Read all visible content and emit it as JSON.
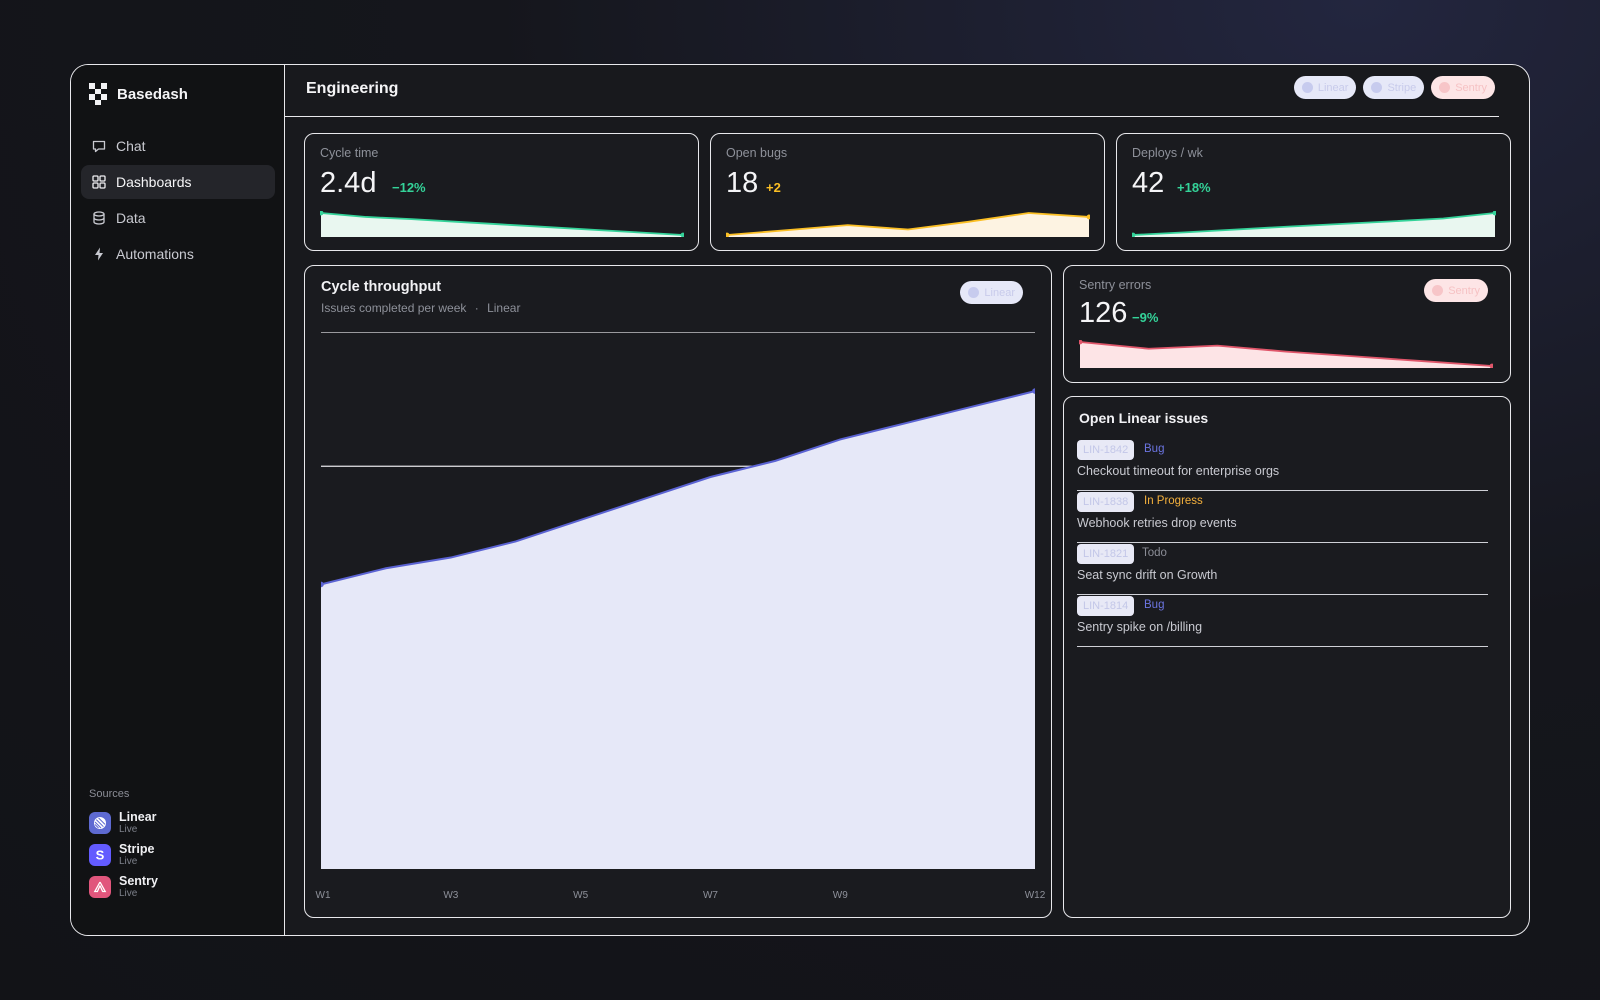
{
  "app": {
    "name": "Basedash"
  },
  "nav": [
    {
      "label": "Chat",
      "icon": "chat-icon",
      "active": false
    },
    {
      "label": "Dashboards",
      "icon": "dashboard-grid-icon",
      "active": true
    },
    {
      "label": "Data",
      "icon": "database-icon",
      "active": false
    },
    {
      "label": "Automations",
      "icon": "bolt-icon",
      "active": false
    }
  ],
  "sources": {
    "title": "Sources",
    "items": [
      {
        "name": "Linear",
        "status": "Live",
        "color": "#5e6ad2",
        "icon": "linear-logo-icon"
      },
      {
        "name": "Stripe",
        "status": "Live",
        "color": "#635bff",
        "icon": "stripe-logo-icon"
      },
      {
        "name": "Sentry",
        "status": "Live",
        "color": "#e1567c",
        "icon": "sentry-logo-icon"
      }
    ]
  },
  "header": {
    "title": "Engineering",
    "pills": [
      {
        "label": "Linear",
        "color": "blue"
      },
      {
        "label": "Stripe",
        "color": "blue"
      },
      {
        "label": "Sentry",
        "color": "red"
      }
    ]
  },
  "kpis": [
    {
      "label": "Cycle time",
      "value": "2.4d",
      "delta": "−12%",
      "delta_color": "#34d399",
      "line_color": "#34d399",
      "fill_color": "#e9f7f0",
      "trend": [
        1.0,
        0.82,
        0.72,
        0.6,
        0.48,
        0.36,
        0.24,
        0.12,
        0.0
      ]
    },
    {
      "label": "Open bugs",
      "value": "18",
      "delta": "+2",
      "delta_color": "#fbbf24",
      "line_color": "#fbbf24",
      "fill_color": "#fdf3e2",
      "trend": [
        0.0,
        0.22,
        0.45,
        0.25,
        0.6,
        1.0,
        0.82
      ]
    },
    {
      "label": "Deploys / wk",
      "value": "42",
      "delta": "+18%",
      "delta_color": "#34d399",
      "line_color": "#34d399",
      "fill_color": "#e9f7f0",
      "trend": [
        0.0,
        0.12,
        0.25,
        0.38,
        0.5,
        0.62,
        0.75,
        1.0
      ]
    }
  ],
  "sentry": {
    "label": "Sentry errors",
    "value": "126",
    "delta": "−9%",
    "delta_color": "#34d399",
    "badge": "Sentry",
    "line_color": "#e0566a",
    "fill_color": "#fde4e6",
    "trend": [
      1.0,
      0.72,
      0.85,
      0.6,
      0.4,
      0.2,
      0.0
    ]
  },
  "main_chart": {
    "title": "Cycle throughput",
    "subtitle": "Issues completed per week",
    "subtitle_source": "Linear",
    "separator": "·",
    "badge": "Linear"
  },
  "chart_data": {
    "type": "area",
    "title": "Cycle throughput",
    "subtitle": "Issues completed per week",
    "categories": [
      "W1",
      "W2",
      "W3",
      "W4",
      "W5",
      "W6",
      "W7",
      "W8",
      "W9",
      "W10",
      "W11",
      "W12"
    ],
    "x_tick_labels": [
      "W1",
      "W3",
      "W5",
      "W7",
      "W9",
      "W12"
    ],
    "series": [
      {
        "values": [
          53,
          56,
          58,
          61,
          65,
          69,
          73,
          76,
          80,
          83,
          86,
          89
        ]
      }
    ],
    "ylim": [
      0,
      100
    ],
    "gridlines": [
      100,
      75
    ],
    "line_color": "#5b63d3",
    "fill_color": "#e6e8f8",
    "legend": "none",
    "grid": true
  },
  "issues": {
    "title": "Open Linear issues",
    "items": [
      {
        "id": "LIN-1842",
        "status": "Bug",
        "status_color": "#6b74e0",
        "title": "Checkout timeout for enterprise orgs"
      },
      {
        "id": "LIN-1838",
        "status": "In Progress",
        "status_color": "#f5b13c",
        "title": "Webhook retries drop events"
      },
      {
        "id": "LIN-1821",
        "status": "Todo",
        "status_color": "#8b8d96",
        "title": "Seat sync drift on Growth"
      },
      {
        "id": "LIN-1814",
        "status": "Bug",
        "status_color": "#6b74e0",
        "title": "Sentry spike on /billing"
      }
    ]
  }
}
